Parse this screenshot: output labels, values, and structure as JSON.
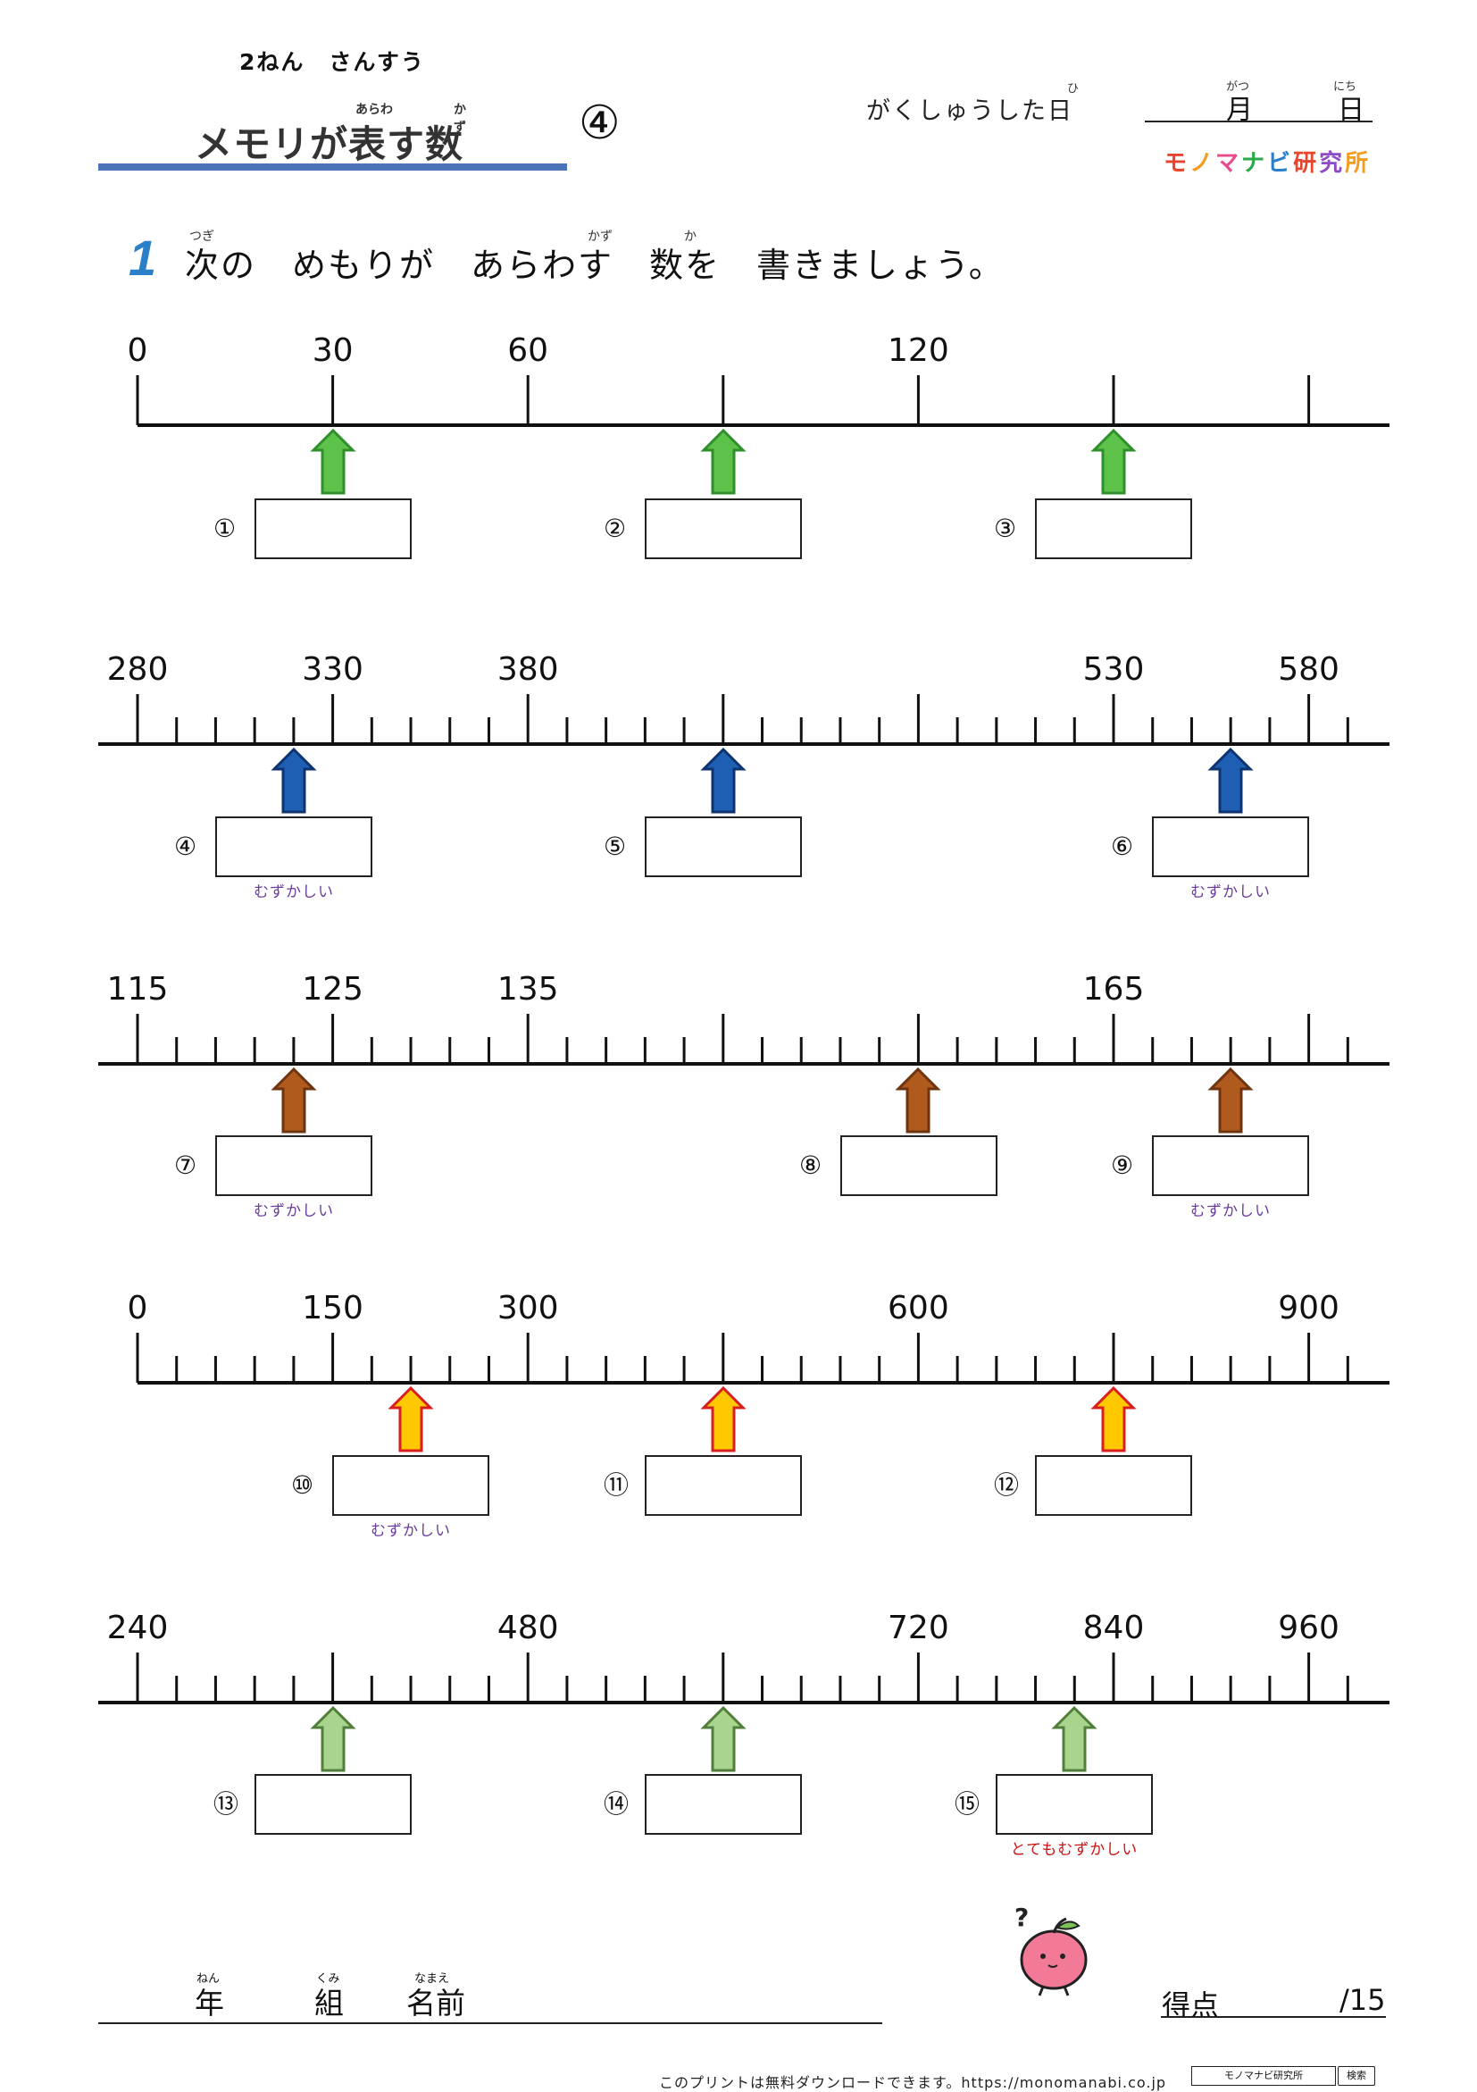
{
  "header": {
    "grade": "2ねん　さんすう",
    "title": "メモリが表す数",
    "title_ruby": [
      {
        "text": "あらわ",
        "pos": "arawa"
      },
      {
        "text": "かず",
        "pos": "kazu"
      }
    ],
    "number": "④",
    "date_label": "がくしゅうした日",
    "date_label_ruby": "ひ",
    "month": "月",
    "month_ruby": "がつ",
    "day": "日",
    "day_ruby": "にち",
    "brand": "モノマナビ研究所"
  },
  "question": {
    "number": "1",
    "text": "次の　めもりが　あらわす　数を　書きましょう。",
    "ruby": [
      "つぎ",
      "かず",
      "か"
    ]
  },
  "lines": [
    {
      "name": "line-1",
      "ticks": [
        "0",
        "30",
        "60",
        "",
        "120"
      ],
      "arrow_color": "#5cc24a",
      "arrow_stroke": "#2f8f2a",
      "answers": [
        {
          "badge": "①",
          "hint": ""
        },
        {
          "badge": "②",
          "hint": ""
        },
        {
          "badge": "③",
          "hint": ""
        }
      ]
    },
    {
      "name": "line-2",
      "ticks": [
        "280",
        "330",
        "380",
        "530",
        "580"
      ],
      "arrow_color": "#1e5fb4",
      "arrow_stroke": "#0d3470",
      "answers": [
        {
          "badge": "④",
          "hint": "むずかしい"
        },
        {
          "badge": "⑤",
          "hint": ""
        },
        {
          "badge": "⑥",
          "hint": "むずかしい"
        }
      ]
    },
    {
      "name": "line-3",
      "ticks": [
        "115",
        "125",
        "135",
        "165"
      ],
      "arrow_color": "#b05a1e",
      "arrow_stroke": "#6e3410",
      "answers": [
        {
          "badge": "⑦",
          "hint": "むずかしい"
        },
        {
          "badge": "⑧",
          "hint": ""
        },
        {
          "badge": "⑨",
          "hint": "むずかしい"
        }
      ]
    },
    {
      "name": "line-4",
      "ticks": [
        "0",
        "150",
        "300",
        "600",
        "900"
      ],
      "arrow_color": "#ffc800",
      "arrow_stroke": "#d81e1e",
      "answers": [
        {
          "badge": "⑩",
          "hint": "むずかしい"
        },
        {
          "badge": "⑪",
          "hint": ""
        },
        {
          "badge": "⑫",
          "hint": ""
        }
      ]
    },
    {
      "name": "line-5",
      "ticks": [
        "240",
        "480",
        "720",
        "840",
        "960"
      ],
      "arrow_color": "#a8d48e",
      "arrow_stroke": "#4f7f3a",
      "answers": [
        {
          "badge": "⑬",
          "hint": ""
        },
        {
          "badge": "⑭",
          "hint": ""
        },
        {
          "badge": "⑮",
          "hint": "とてもむずかしい"
        }
      ]
    }
  ],
  "footer": {
    "year": "年",
    "year_ruby": "ねん",
    "class": "組",
    "class_ruby": "くみ",
    "name": "名前",
    "name_ruby": "なまえ",
    "score_label": "得点",
    "score_total": "/15",
    "download_text": "このプリントは無料ダウンロードできます。https://monomanabi.co.jp",
    "search_box": "モノマナビ研究所",
    "search_button": "検索"
  }
}
